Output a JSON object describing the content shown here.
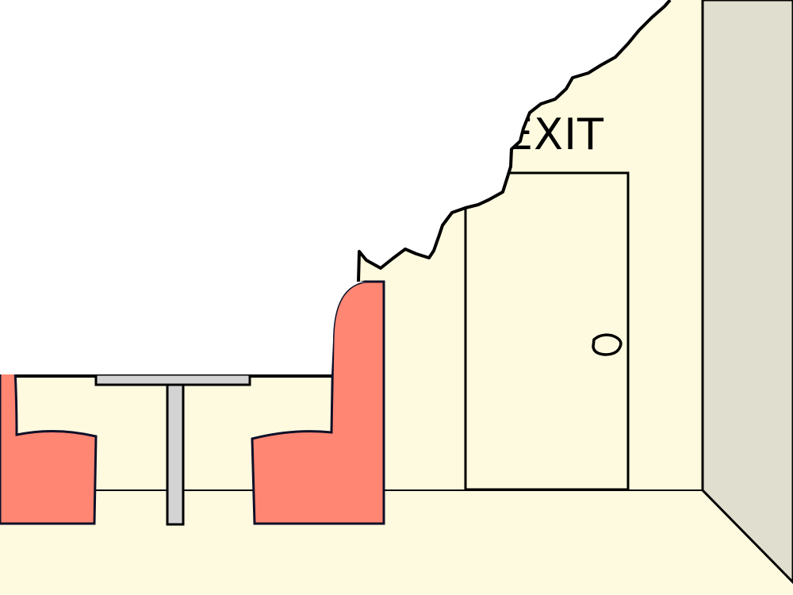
{
  "scene": {
    "exit_sign": "EXIT"
  },
  "colors": {
    "wall": "#FEFADF",
    "floor": "#FEFADF",
    "side_wall": "#E0DECE",
    "booth_seat": "#FF8673",
    "table": "#D3D3D3",
    "outline": "#000000",
    "torn_area": "#FFFFFF"
  },
  "icons": {
    "door_knob": "door-knob-icon"
  }
}
